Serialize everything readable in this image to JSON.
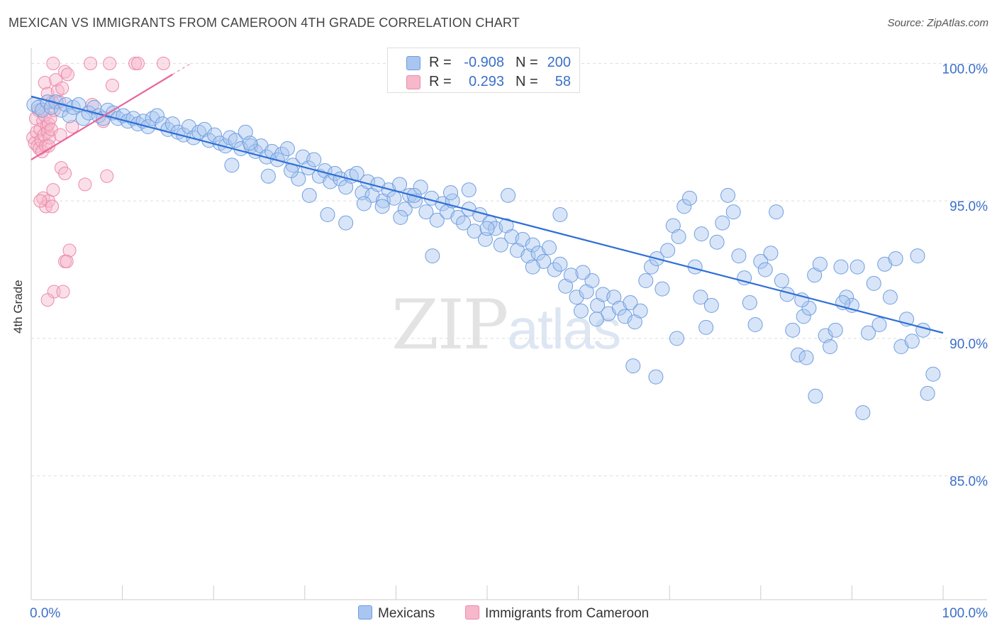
{
  "header": {
    "title": "MEXICAN VS IMMIGRANTS FROM CAMEROON 4TH GRADE CORRELATION CHART",
    "source": "Source: ZipAtlas.com"
  },
  "watermark": {
    "zip": "ZIP",
    "atlas": "atlas"
  },
  "legend_top": {
    "rows": [
      {
        "r_key": "R =",
        "r_value": "-0.908",
        "n_key": "N =",
        "n_value": "200",
        "color": "#a9c6f0"
      },
      {
        "r_key": "R =",
        "r_value": "0.293",
        "n_key": "N =",
        "n_value": "58",
        "color": "#f7b8cc"
      }
    ]
  },
  "legend_bottom": {
    "items": [
      {
        "label": "Mexicans",
        "color": "#a9c6f0"
      },
      {
        "label": "Immigrants from Cameroon",
        "color": "#f7b8cc"
      }
    ]
  },
  "colors": {
    "blue_fill": "#a9c6f0",
    "blue_stroke": "#6e9ddf",
    "blue_line": "#2f6fd6",
    "pink_fill": "#f7b8cc",
    "pink_stroke": "#ec8aa9",
    "pink_line": "#e8659a",
    "tick_label": "#3b6fc9",
    "grid": "#dddddd"
  },
  "chart_data": {
    "type": "scatter",
    "title": "MEXICAN VS IMMIGRANTS FROM CAMEROON 4TH GRADE CORRELATION CHART",
    "ylabel": "4th Grade",
    "xlabel": "",
    "xlim": [
      0,
      100
    ],
    "ylim": [
      80.5,
      100.5
    ],
    "x_tick_labels": [
      "0.0%",
      "100.0%"
    ],
    "y_ticks": [
      {
        "value": 100,
        "label": "100.0%"
      },
      {
        "value": 95,
        "label": "95.0%"
      },
      {
        "value": 90,
        "label": "90.0%"
      },
      {
        "value": 85,
        "label": "85.0%"
      }
    ],
    "series": [
      {
        "name": "Mexicans",
        "r": -0.908,
        "n": 200,
        "trend": [
          [
            0,
            98.8
          ],
          [
            100,
            90.2
          ]
        ],
        "points": [
          [
            0.3,
            98.5
          ],
          [
            0.8,
            98.4
          ],
          [
            1.2,
            98.3
          ],
          [
            1.8,
            98.6
          ],
          [
            2.2,
            98.4
          ],
          [
            2.7,
            98.6
          ],
          [
            3.3,
            98.3
          ],
          [
            3.8,
            98.5
          ],
          [
            4.2,
            98.1
          ],
          [
            4.6,
            98.4
          ],
          [
            5.2,
            98.5
          ],
          [
            5.7,
            98.0
          ],
          [
            6.3,
            98.2
          ],
          [
            6.9,
            98.4
          ],
          [
            7.4,
            98.1
          ],
          [
            7.9,
            98.0
          ],
          [
            8.4,
            98.3
          ],
          [
            9.0,
            98.2
          ],
          [
            9.5,
            98.0
          ],
          [
            10.1,
            98.1
          ],
          [
            10.6,
            97.9
          ],
          [
            11.2,
            98.0
          ],
          [
            11.7,
            97.8
          ],
          [
            12.3,
            97.9
          ],
          [
            12.8,
            97.7
          ],
          [
            13.3,
            98.0
          ],
          [
            13.8,
            98.1
          ],
          [
            14.4,
            97.8
          ],
          [
            15.0,
            97.6
          ],
          [
            15.5,
            97.8
          ],
          [
            16.1,
            97.5
          ],
          [
            16.7,
            97.4
          ],
          [
            17.3,
            97.7
          ],
          [
            17.8,
            97.3
          ],
          [
            18.4,
            97.5
          ],
          [
            19.0,
            97.6
          ],
          [
            19.5,
            97.2
          ],
          [
            20.1,
            97.4
          ],
          [
            20.7,
            97.1
          ],
          [
            21.3,
            97.0
          ],
          [
            21.8,
            97.3
          ],
          [
            22.4,
            97.2
          ],
          [
            23.0,
            96.9
          ],
          [
            23.5,
            97.5
          ],
          [
            24.1,
            97.0
          ],
          [
            24.6,
            96.8
          ],
          [
            25.2,
            97.0
          ],
          [
            25.8,
            96.6
          ],
          [
            26.4,
            96.8
          ],
          [
            27.0,
            96.5
          ],
          [
            27.5,
            96.7
          ],
          [
            28.1,
            96.9
          ],
          [
            28.7,
            96.3
          ],
          [
            29.3,
            95.8
          ],
          [
            29.8,
            96.6
          ],
          [
            30.4,
            96.2
          ],
          [
            31.0,
            96.5
          ],
          [
            31.6,
            95.9
          ],
          [
            32.2,
            96.1
          ],
          [
            32.8,
            95.7
          ],
          [
            33.3,
            96.0
          ],
          [
            33.9,
            95.8
          ],
          [
            34.5,
            95.5
          ],
          [
            35.1,
            95.9
          ],
          [
            35.7,
            96.0
          ],
          [
            36.3,
            95.3
          ],
          [
            36.9,
            95.7
          ],
          [
            37.4,
            95.2
          ],
          [
            38.0,
            95.6
          ],
          [
            38.6,
            95.0
          ],
          [
            39.2,
            95.4
          ],
          [
            39.8,
            95.1
          ],
          [
            40.4,
            95.6
          ],
          [
            41.0,
            94.7
          ],
          [
            41.5,
            95.2
          ],
          [
            42.1,
            95.0
          ],
          [
            42.7,
            95.5
          ],
          [
            43.3,
            94.6
          ],
          [
            43.9,
            95.1
          ],
          [
            44.5,
            94.3
          ],
          [
            45.1,
            94.9
          ],
          [
            45.6,
            94.6
          ],
          [
            46.2,
            95.0
          ],
          [
            46.8,
            94.4
          ],
          [
            47.4,
            94.2
          ],
          [
            48.0,
            94.7
          ],
          [
            48.6,
            93.9
          ],
          [
            49.2,
            94.5
          ],
          [
            49.8,
            93.6
          ],
          [
            50.3,
            94.2
          ],
          [
            50.9,
            94.0
          ],
          [
            51.5,
            93.4
          ],
          [
            52.1,
            94.1
          ],
          [
            52.7,
            93.7
          ],
          [
            53.3,
            93.2
          ],
          [
            53.9,
            93.6
          ],
          [
            54.5,
            93.0
          ],
          [
            55.0,
            93.4
          ],
          [
            55.6,
            93.1
          ],
          [
            56.2,
            92.8
          ],
          [
            56.8,
            93.3
          ],
          [
            57.4,
            92.5
          ],
          [
            58.0,
            92.7
          ],
          [
            58.6,
            91.9
          ],
          [
            59.2,
            92.3
          ],
          [
            59.8,
            91.5
          ],
          [
            60.3,
            91.0
          ],
          [
            60.9,
            91.7
          ],
          [
            61.5,
            92.1
          ],
          [
            62.1,
            91.2
          ],
          [
            62.7,
            91.6
          ],
          [
            63.3,
            90.9
          ],
          [
            63.9,
            91.5
          ],
          [
            64.5,
            91.1
          ],
          [
            65.1,
            90.8
          ],
          [
            65.7,
            91.3
          ],
          [
            66.2,
            90.6
          ],
          [
            66.8,
            91.0
          ],
          [
            67.4,
            92.1
          ],
          [
            68.0,
            92.6
          ],
          [
            68.6,
            92.9
          ],
          [
            69.2,
            91.8
          ],
          [
            69.8,
            93.2
          ],
          [
            70.4,
            94.1
          ],
          [
            71.0,
            93.7
          ],
          [
            71.6,
            94.8
          ],
          [
            72.2,
            95.1
          ],
          [
            72.8,
            92.6
          ],
          [
            73.4,
            91.5
          ],
          [
            74.0,
            90.4
          ],
          [
            74.6,
            91.2
          ],
          [
            75.2,
            93.5
          ],
          [
            75.8,
            94.2
          ],
          [
            76.4,
            95.2
          ],
          [
            77.0,
            94.6
          ],
          [
            77.6,
            93.0
          ],
          [
            78.2,
            92.2
          ],
          [
            78.8,
            91.3
          ],
          [
            79.4,
            90.5
          ],
          [
            80.0,
            92.8
          ],
          [
            80.5,
            92.5
          ],
          [
            81.1,
            93.1
          ],
          [
            81.7,
            94.6
          ],
          [
            82.3,
            92.1
          ],
          [
            82.9,
            91.6
          ],
          [
            83.5,
            90.3
          ],
          [
            84.1,
            89.4
          ],
          [
            84.7,
            90.8
          ],
          [
            85.3,
            91.1
          ],
          [
            85.9,
            92.3
          ],
          [
            86.5,
            92.7
          ],
          [
            87.1,
            90.1
          ],
          [
            87.6,
            89.7
          ],
          [
            88.2,
            90.3
          ],
          [
            88.8,
            92.6
          ],
          [
            89.4,
            91.5
          ],
          [
            90.0,
            91.2
          ],
          [
            90.6,
            92.6
          ],
          [
            91.2,
            87.3
          ],
          [
            91.8,
            90.2
          ],
          [
            92.4,
            92.0
          ],
          [
            93.0,
            90.5
          ],
          [
            93.6,
            92.7
          ],
          [
            94.2,
            91.5
          ],
          [
            94.8,
            92.9
          ],
          [
            95.4,
            89.7
          ],
          [
            96.0,
            90.7
          ],
          [
            96.6,
            89.9
          ],
          [
            97.2,
            93.0
          ],
          [
            97.8,
            90.3
          ],
          [
            98.3,
            88.0
          ],
          [
            98.9,
            88.7
          ],
          [
            86.0,
            87.9
          ],
          [
            89.0,
            91.3
          ],
          [
            85.0,
            89.3
          ],
          [
            84.5,
            91.4
          ],
          [
            73.5,
            93.8
          ],
          [
            70.8,
            90.0
          ],
          [
            68.5,
            88.6
          ],
          [
            66.0,
            89.0
          ],
          [
            62.0,
            90.7
          ],
          [
            60.5,
            92.4
          ],
          [
            58.0,
            94.5
          ],
          [
            55.0,
            92.6
          ],
          [
            52.3,
            95.2
          ],
          [
            50.0,
            94.0
          ],
          [
            48.0,
            95.4
          ],
          [
            46.0,
            95.3
          ],
          [
            44.0,
            93.0
          ],
          [
            42.0,
            95.2
          ],
          [
            40.5,
            94.4
          ],
          [
            38.5,
            94.8
          ],
          [
            36.5,
            94.9
          ],
          [
            34.5,
            94.2
          ],
          [
            32.5,
            94.5
          ],
          [
            30.5,
            95.2
          ],
          [
            28.5,
            96.1
          ],
          [
            26.0,
            95.9
          ],
          [
            24.0,
            97.1
          ],
          [
            22.0,
            96.3
          ]
        ]
      },
      {
        "name": "Immigrants from Cameroon",
        "r": 0.293,
        "n": 58,
        "trend": [
          [
            0,
            96.5
          ],
          [
            15.5,
            99.6
          ]
        ],
        "points": [
          [
            0.2,
            97.3
          ],
          [
            0.4,
            97.1
          ],
          [
            0.5,
            98.0
          ],
          [
            0.6,
            97.5
          ],
          [
            0.7,
            97.0
          ],
          [
            0.8,
            98.3
          ],
          [
            0.9,
            96.9
          ],
          [
            1.0,
            97.6
          ],
          [
            1.1,
            97.2
          ],
          [
            1.2,
            96.8
          ],
          [
            1.3,
            97.9
          ],
          [
            1.4,
            97.4
          ],
          [
            1.5,
            98.1
          ],
          [
            1.6,
            97.0
          ],
          [
            1.7,
            97.7
          ],
          [
            1.8,
            97.5
          ],
          [
            1.9,
            97.8
          ],
          [
            2.0,
            97.3
          ],
          [
            2.1,
            98.0
          ],
          [
            2.2,
            97.6
          ],
          [
            1.5,
            99.3
          ],
          [
            1.8,
            98.9
          ],
          [
            2.3,
            98.6
          ],
          [
            2.5,
            98.3
          ],
          [
            2.7,
            99.4
          ],
          [
            2.9,
            99.0
          ],
          [
            3.1,
            98.6
          ],
          [
            3.4,
            99.1
          ],
          [
            3.7,
            99.7
          ],
          [
            4.0,
            99.6
          ],
          [
            2.4,
            100.0
          ],
          [
            6.5,
            100.0
          ],
          [
            8.6,
            100.0
          ],
          [
            11.4,
            100.0
          ],
          [
            11.7,
            100.0
          ],
          [
            14.5,
            100.0
          ],
          [
            8.9,
            99.2
          ],
          [
            7.9,
            97.9
          ],
          [
            4.5,
            97.7
          ],
          [
            3.2,
            97.4
          ],
          [
            1.9,
            97.0
          ],
          [
            1.3,
            95.1
          ],
          [
            1.6,
            94.8
          ],
          [
            1.9,
            95.0
          ],
          [
            2.3,
            94.8
          ],
          [
            2.4,
            95.4
          ],
          [
            1.0,
            95.0
          ],
          [
            3.3,
            96.2
          ],
          [
            3.7,
            96.0
          ],
          [
            5.9,
            95.6
          ],
          [
            8.3,
            95.9
          ],
          [
            4.2,
            93.2
          ],
          [
            3.7,
            92.8
          ],
          [
            3.9,
            92.8
          ],
          [
            2.5,
            91.7
          ],
          [
            3.5,
            91.7
          ],
          [
            1.8,
            91.4
          ],
          [
            6.7,
            98.5
          ]
        ]
      }
    ]
  }
}
